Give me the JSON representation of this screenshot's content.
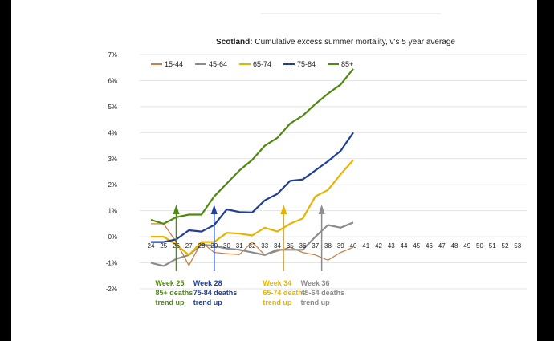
{
  "chart_data": {
    "type": "line",
    "title_bold": "Scotland:",
    "title_rest": " Cumulative excess summer mortality, v's 5 year average",
    "xlabel": "",
    "ylabel": "",
    "x": [
      24,
      25,
      26,
      27,
      28,
      29,
      30,
      31,
      32,
      33,
      34,
      35,
      36,
      37,
      38,
      39,
      40
    ],
    "x_ticks": [
      "24",
      "25",
      "26",
      "27",
      "28",
      "29",
      "30",
      "31",
      "32",
      "33",
      "34",
      "35",
      "36",
      "37",
      "38",
      "39",
      "40",
      "41",
      "42",
      "43",
      "44",
      "45",
      "46",
      "47",
      "48",
      "49",
      "50",
      "51",
      "52",
      "53"
    ],
    "ylim": [
      -2,
      7
    ],
    "y_ticks": [
      "-2%",
      "-1%",
      "0%",
      "1%",
      "2%",
      "3%",
      "4%",
      "5%",
      "6%",
      "7%"
    ],
    "series": [
      {
        "name": "15-44",
        "color": "#c8824a",
        "values": [
          0.5,
          0.5,
          -0.2,
          -1.1,
          -0.2,
          -0.6,
          -0.65,
          -0.68,
          -0.2,
          -0.7,
          -0.55,
          -0.4,
          -0.6,
          -0.7,
          -0.9,
          -0.6,
          -0.4
        ]
      },
      {
        "name": "45-64",
        "color": "#8c8c8c",
        "values": [
          -1.0,
          -1.12,
          -0.85,
          -0.7,
          -0.3,
          -0.35,
          -0.45,
          -0.5,
          -0.6,
          -0.7,
          -0.5,
          -0.5,
          -0.5,
          0.0,
          0.45,
          0.35,
          0.55
        ]
      },
      {
        "name": "65-74",
        "color": "#e6b400",
        "values": [
          0.0,
          0.0,
          -0.3,
          -0.7,
          -0.2,
          -0.2,
          0.15,
          0.12,
          0.05,
          0.35,
          0.2,
          0.5,
          0.7,
          1.55,
          1.8,
          2.4,
          2.95
        ]
      },
      {
        "name": "75-84",
        "color": "#1f3f99",
        "values": [
          -0.2,
          -0.2,
          -0.1,
          0.25,
          0.2,
          0.45,
          1.05,
          0.95,
          0.93,
          1.4,
          1.65,
          2.15,
          2.2,
          2.55,
          2.9,
          3.3,
          4.0
        ]
      },
      {
        "name": "85+",
        "color": "#4f8a10",
        "values": [
          0.65,
          0.5,
          0.75,
          0.85,
          0.85,
          1.55,
          2.05,
          2.55,
          2.95,
          3.5,
          3.8,
          4.35,
          4.65,
          5.1,
          5.5,
          5.85,
          6.45
        ]
      }
    ],
    "legend_position": "top-left",
    "annotations": [
      {
        "lines": [
          "Week 25",
          "85+ deaths",
          "trend up"
        ],
        "color": "#4f8a10",
        "week": 26
      },
      {
        "lines": [
          "Week 28",
          "75-84 deaths",
          "trend up"
        ],
        "color": "#1f3f99",
        "week": 29
      },
      {
        "lines": [
          "Week 34",
          "65-74 deaths",
          "trend up"
        ],
        "color": "#e6b400",
        "week": 34.5
      },
      {
        "lines": [
          "Week 36",
          "45-64 deaths",
          "trend up"
        ],
        "color": "#8c8c8c",
        "week": 37.5
      }
    ]
  }
}
